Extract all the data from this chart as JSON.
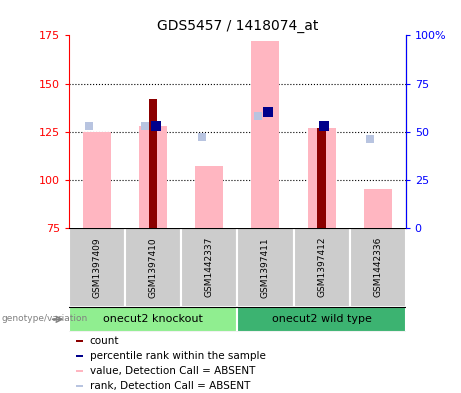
{
  "title": "GDS5457 / 1418074_at",
  "samples": [
    "GSM1397409",
    "GSM1397410",
    "GSM1442337",
    "GSM1397411",
    "GSM1397412",
    "GSM1442336"
  ],
  "group_labels": [
    "onecut2 knockout",
    "onecut2 wild type"
  ],
  "group_colors": [
    "#90EE90",
    "#3CB371"
  ],
  "group_ranges": [
    [
      0,
      2
    ],
    [
      3,
      5
    ]
  ],
  "count_values": [
    null,
    142,
    null,
    null,
    127,
    null
  ],
  "percentile_values": [
    null,
    128,
    null,
    135,
    128,
    null
  ],
  "absent_value_values": [
    125,
    128,
    107,
    172,
    127,
    95
  ],
  "absent_rank_values": [
    128,
    128,
    122,
    133,
    null,
    121
  ],
  "ylim_left": [
    75,
    175
  ],
  "left_ticks": [
    75,
    100,
    125,
    150,
    175
  ],
  "left_tick_labels": [
    "75",
    "100",
    "125",
    "150",
    "175"
  ],
  "right_ticks": [
    0,
    25,
    50,
    75,
    100
  ],
  "right_tick_labels": [
    "0",
    "25",
    "50",
    "75",
    "100%"
  ],
  "count_color": "#8B0000",
  "percentile_color": "#00008B",
  "absent_value_color": "#FFB6C1",
  "absent_rank_color": "#B8C4E0",
  "legend_labels": [
    "count",
    "percentile rank within the sample",
    "value, Detection Call = ABSENT",
    "rank, Detection Call = ABSENT"
  ],
  "legend_colors": [
    "#8B0000",
    "#00008B",
    "#FFB6C1",
    "#B8C4E0"
  ],
  "absent_value_bar_width": 0.5,
  "count_bar_width": 0.15
}
